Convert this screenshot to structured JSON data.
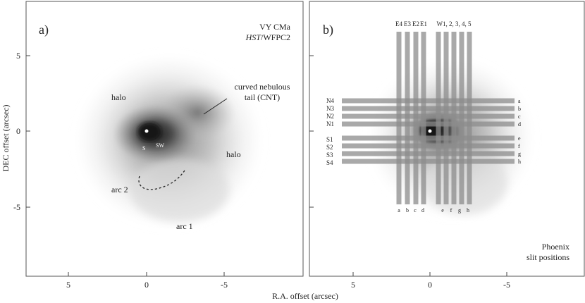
{
  "figure": {
    "ylabel": "DEC offset (arcsec)",
    "xlabel": "R.A. offset (arcsec)",
    "x_ticks": [
      "5",
      "0",
      "-5"
    ],
    "y_ticks": [
      "5",
      "0",
      "-5"
    ]
  },
  "panel_a": {
    "tag": "a)",
    "target": "VY CMa",
    "instrument_italic": "HST",
    "instrument_rest": "/WFPC2",
    "labels": {
      "halo_left": "halo",
      "halo_right": "halo",
      "cnt_line1": "curved nebulous",
      "cnt_line2": "tail (CNT)",
      "sw": "SW",
      "s": "S",
      "arc2": "arc 2",
      "arc1": "arc 1"
    }
  },
  "panel_b": {
    "tag": "b)",
    "caption_line1": "Phoenix",
    "caption_line2": "slit positions",
    "top_east": [
      "E4",
      "E3",
      "E2",
      "E1"
    ],
    "top_west": "W1, 2, 3, 4, 5",
    "left_north": [
      "N4",
      "N3",
      "N2",
      "N1"
    ],
    "left_south": [
      "S1",
      "S2",
      "S3",
      "S4"
    ],
    "right_letters": [
      "a",
      "b",
      "c",
      "d",
      "e",
      "f",
      "g",
      "h"
    ],
    "bottom_letters": [
      "a",
      "b",
      "c",
      "d",
      "e",
      "f",
      "g",
      "h"
    ]
  },
  "colors": {
    "frame": "#555555",
    "nebula_dark": "#2a2a2a",
    "slit": "#8c8c8c"
  }
}
